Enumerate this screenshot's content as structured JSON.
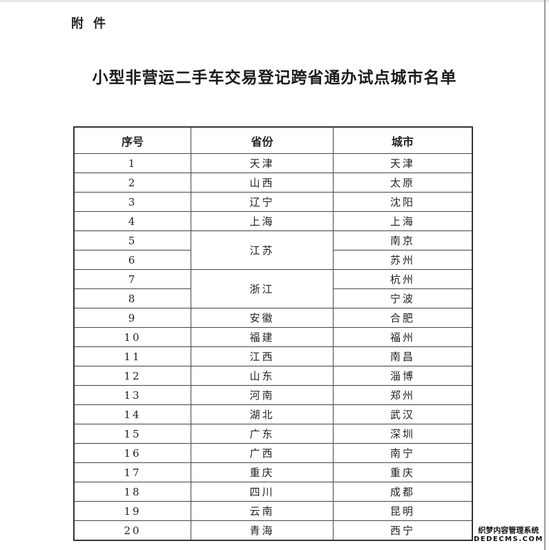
{
  "annex_label": "附件",
  "title": "小型非营运二手车交易登记跨省通办试点城市名单",
  "table": {
    "headers": [
      "序号",
      "省份",
      "城市"
    ],
    "rows": [
      {
        "no": "1",
        "province": "天津",
        "city": "天津"
      },
      {
        "no": "2",
        "province": "山西",
        "city": "太原"
      },
      {
        "no": "3",
        "province": "辽宁",
        "city": "沈阳"
      },
      {
        "no": "4",
        "province": "上海",
        "city": "上海"
      },
      {
        "no": "5",
        "province": "江苏",
        "province_rowspan": 2,
        "city": "南京"
      },
      {
        "no": "6",
        "city": "苏州"
      },
      {
        "no": "7",
        "province": "浙江",
        "province_rowspan": 2,
        "city": "杭州"
      },
      {
        "no": "8",
        "city": "宁波"
      },
      {
        "no": "9",
        "province": "安徽",
        "city": "合肥"
      },
      {
        "no": "10",
        "province": "福建",
        "city": "福州"
      },
      {
        "no": "11",
        "province": "江西",
        "city": "南昌"
      },
      {
        "no": "12",
        "province": "山东",
        "city": "淄博"
      },
      {
        "no": "13",
        "province": "河南",
        "city": "郑州"
      },
      {
        "no": "14",
        "province": "湖北",
        "city": "武汉"
      },
      {
        "no": "15",
        "province": "广东",
        "city": "深圳"
      },
      {
        "no": "16",
        "province": "广西",
        "city": "南宁"
      },
      {
        "no": "17",
        "province": "重庆",
        "city": "重庆"
      },
      {
        "no": "18",
        "province": "四川",
        "city": "成都"
      },
      {
        "no": "19",
        "province": "云南",
        "city": "昆明"
      },
      {
        "no": "20",
        "province": "青海",
        "city": "西宁"
      }
    ]
  },
  "watermark": {
    "line1": "织梦内容管理系统",
    "line2": "DEDECMS.COM"
  }
}
